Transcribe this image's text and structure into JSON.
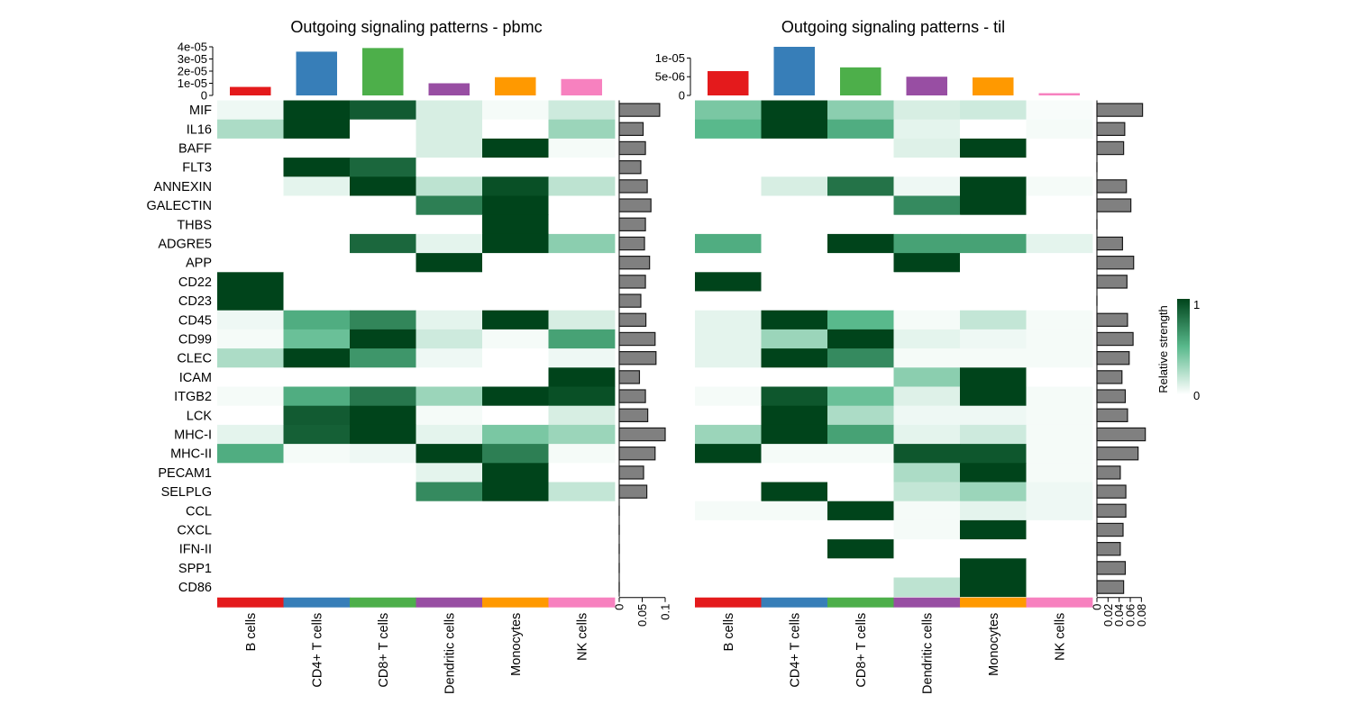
{
  "legend": {
    "title": "Relative strength",
    "max_label": "1",
    "min_label": "0"
  },
  "colors": {
    "heat_low": "#ffffff",
    "heat_mid": "#59b98c",
    "heat_high": "#00441b",
    "row_bar_fill": "#808080",
    "row_bar_stroke": "#1a1a1a"
  },
  "chart_data": [
    {
      "type": "heatmap",
      "title": "Outgoing signaling patterns - pbmc",
      "rows": [
        "MIF",
        "IL16",
        "BAFF",
        "FLT3",
        "ANNEXIN",
        "GALECTIN",
        "THBS",
        "ADGRE5",
        "APP",
        "CD22",
        "CD23",
        "CD45",
        "CD99",
        "CLEC",
        "ICAM",
        "ITGB2",
        "LCK",
        "MHC-I",
        "MHC-II",
        "PECAM1",
        "SELPLG",
        "CCL",
        "CXCL",
        "IFN-II",
        "SPP1",
        "CD86"
      ],
      "columns": [
        "B cells",
        "CD4+ T cells",
        "CD8+ T cells",
        "Dendritic cells",
        "Monocytes",
        "NK cells"
      ],
      "column_colors": [
        "#e41a1c",
        "#377eb8",
        "#4daf4a",
        "#984ea3",
        "#ff9900",
        "#f781bf"
      ],
      "values": [
        [
          0.05,
          1.0,
          0.9,
          0.12,
          0.03,
          0.15
        ],
        [
          0.25,
          1.0,
          0.0,
          0.12,
          0.0,
          0.3
        ],
        [
          0.0,
          0.0,
          0.0,
          0.12,
          1.0,
          0.03
        ],
        [
          0.0,
          1.0,
          0.85,
          0.0,
          0.0,
          0.0
        ],
        [
          0.0,
          0.08,
          1.0,
          0.2,
          0.95,
          0.2
        ],
        [
          0.0,
          0.0,
          0.0,
          0.75,
          1.0,
          0.0
        ],
        [
          0.0,
          0.0,
          0.0,
          0.0,
          1.0,
          0.0
        ],
        [
          0.0,
          0.0,
          0.85,
          0.08,
          1.0,
          0.35
        ],
        [
          0.0,
          0.0,
          0.0,
          1.0,
          0.0,
          0.0
        ],
        [
          1.0,
          0.0,
          0.0,
          0.0,
          0.0,
          0.0
        ],
        [
          1.0,
          0.0,
          0.0,
          0.0,
          0.0,
          0.0
        ],
        [
          0.05,
          0.55,
          0.72,
          0.08,
          1.0,
          0.12
        ],
        [
          0.03,
          0.45,
          1.0,
          0.15,
          0.03,
          0.6
        ],
        [
          0.25,
          1.0,
          0.65,
          0.05,
          0.0,
          0.05
        ],
        [
          0.0,
          0.0,
          0.0,
          0.0,
          0.0,
          1.0
        ],
        [
          0.03,
          0.55,
          0.78,
          0.3,
          1.0,
          0.95
        ],
        [
          0.0,
          0.9,
          1.0,
          0.03,
          0.0,
          0.12
        ],
        [
          0.08,
          0.88,
          1.0,
          0.08,
          0.4,
          0.3
        ],
        [
          0.55,
          0.03,
          0.05,
          1.0,
          0.75,
          0.03
        ],
        [
          0.0,
          0.0,
          0.0,
          0.08,
          1.0,
          0.0
        ],
        [
          0.0,
          0.0,
          0.0,
          0.7,
          1.0,
          0.18
        ],
        [
          0.0,
          0.0,
          0.0,
          0.0,
          0.0,
          0.0
        ],
        [
          0.0,
          0.0,
          0.0,
          0.0,
          0.0,
          0.0
        ],
        [
          0.0,
          0.0,
          0.0,
          0.0,
          0.0,
          0.0
        ],
        [
          0.0,
          0.0,
          0.0,
          0.0,
          0.0,
          0.0
        ],
        [
          0.0,
          0.0,
          0.0,
          0.0,
          0.0,
          0.0
        ]
      ],
      "column_sums": [
        7e-06,
        3.6e-05,
        3.9e-05,
        1e-05,
        1.5e-05,
        1.35e-05
      ],
      "top_ylim": [
        0,
        4e-05
      ],
      "top_yticks": [
        0,
        1e-05,
        2e-05,
        3e-05,
        4e-05
      ],
      "top_ytick_labels": [
        "0",
        "1e-05",
        "2e-05",
        "3e-05",
        "4e-05"
      ],
      "row_sums": [
        0.088,
        0.052,
        0.057,
        0.047,
        0.061,
        0.069,
        0.057,
        0.055,
        0.066,
        0.057,
        0.047,
        0.058,
        0.078,
        0.08,
        0.044,
        0.057,
        0.062,
        0.1,
        0.078,
        0.053,
        0.06,
        0,
        0,
        0,
        0,
        0
      ],
      "right_xlim": [
        0,
        0.105
      ],
      "right_xticks": [
        0,
        0.05,
        0.1
      ],
      "right_xtick_labels": [
        "0",
        "0.05",
        "0.1"
      ]
    },
    {
      "type": "heatmap",
      "title": "Outgoing signaling patterns - til",
      "rows": [
        "MIF",
        "IL16",
        "BAFF",
        "FLT3",
        "ANNEXIN",
        "GALECTIN",
        "THBS",
        "ADGRE5",
        "APP",
        "CD22",
        "CD23",
        "CD45",
        "CD99",
        "CLEC",
        "ICAM",
        "ITGB2",
        "LCK",
        "MHC-I",
        "MHC-II",
        "PECAM1",
        "SELPLG",
        "CCL",
        "CXCL",
        "IFN-II",
        "SPP1",
        "CD86"
      ],
      "columns": [
        "B cells",
        "CD4+ T cells",
        "CD8+ T cells",
        "Dendritic cells",
        "Monocytes",
        "NK cells"
      ],
      "column_colors": [
        "#e41a1c",
        "#377eb8",
        "#4daf4a",
        "#984ea3",
        "#ff9900",
        "#f781bf"
      ],
      "values": [
        [
          0.4,
          1.0,
          0.35,
          0.12,
          0.15,
          0.02
        ],
        [
          0.5,
          1.0,
          0.55,
          0.08,
          0.0,
          0.03
        ],
        [
          0.0,
          0.0,
          0.0,
          0.1,
          1.0,
          0.0
        ],
        [
          0.0,
          0.0,
          0.0,
          0.0,
          0.0,
          0.0
        ],
        [
          0.0,
          0.12,
          0.8,
          0.05,
          1.0,
          0.03
        ],
        [
          0.0,
          0.0,
          0.0,
          0.7,
          1.0,
          0.0
        ],
        [
          0.0,
          0.0,
          0.0,
          0.0,
          0.0,
          0.0
        ],
        [
          0.55,
          0.0,
          1.0,
          0.6,
          0.6,
          0.08
        ],
        [
          0.0,
          0.0,
          0.0,
          1.0,
          0.0,
          0.0
        ],
        [
          1.0,
          0.0,
          0.0,
          0.0,
          0.0,
          0.0
        ],
        [
          0.0,
          0.0,
          0.0,
          0.0,
          0.0,
          0.0
        ],
        [
          0.08,
          1.0,
          0.5,
          0.03,
          0.18,
          0.03
        ],
        [
          0.08,
          0.3,
          1.0,
          0.08,
          0.05,
          0.03
        ],
        [
          0.08,
          1.0,
          0.7,
          0.03,
          0.03,
          0.03
        ],
        [
          0.0,
          0.0,
          0.0,
          0.35,
          1.0,
          0.0
        ],
        [
          0.03,
          0.92,
          0.45,
          0.1,
          1.0,
          0.03
        ],
        [
          0.0,
          1.0,
          0.25,
          0.05,
          0.05,
          0.03
        ],
        [
          0.3,
          1.0,
          0.6,
          0.08,
          0.15,
          0.03
        ],
        [
          1.0,
          0.03,
          0.03,
          0.92,
          0.92,
          0.03
        ],
        [
          0.0,
          0.0,
          0.0,
          0.25,
          1.0,
          0.03
        ],
        [
          0.0,
          1.0,
          0.0,
          0.18,
          0.3,
          0.05
        ],
        [
          0.03,
          0.03,
          1.0,
          0.03,
          0.08,
          0.05
        ],
        [
          0.0,
          0.0,
          0.0,
          0.03,
          1.0,
          0.0
        ],
        [
          0.0,
          0.0,
          1.0,
          0.0,
          0.0,
          0.0
        ],
        [
          0.0,
          0.0,
          0.0,
          0.0,
          1.0,
          0.0
        ],
        [
          0.0,
          0.0,
          0.0,
          0.2,
          1.0,
          0.0
        ]
      ],
      "column_sums": [
        6.5e-06,
        1.3e-05,
        7.5e-06,
        5e-06,
        4.8e-06,
        6e-07
      ],
      "top_ylim": [
        0,
        1.3e-05
      ],
      "top_yticks": [
        0,
        5e-06,
        1e-05
      ],
      "top_ytick_labels": [
        "0",
        "5e-06",
        "1e-05"
      ],
      "row_sums": [
        0.082,
        0.05,
        0.048,
        0,
        0.053,
        0.061,
        0,
        0.046,
        0.066,
        0.054,
        0,
        0.055,
        0.065,
        0.058,
        0.045,
        0.051,
        0.055,
        0.087,
        0.074,
        0.042,
        0.052,
        0.052,
        0.047,
        0.042,
        0.051,
        0.048
      ],
      "right_xlim": [
        0,
        0.09
      ],
      "right_xticks": [
        0,
        0.02,
        0.04,
        0.06,
        0.08
      ],
      "right_xtick_labels": [
        "0",
        "0.02",
        "0.04",
        "0.06",
        "0.08"
      ]
    }
  ]
}
